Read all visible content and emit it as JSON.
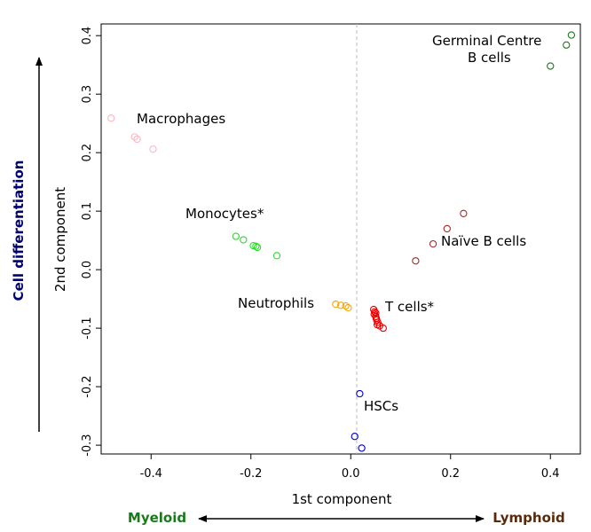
{
  "chart_data": {
    "type": "scatter",
    "xlabel": "1st component",
    "ylabel": "2nd component",
    "xlim": [
      -0.5,
      0.46
    ],
    "ylim": [
      -0.315,
      0.42
    ],
    "x_ticks": [
      -0.4,
      -0.2,
      0.0,
      0.2,
      0.4
    ],
    "x_tick_labels": [
      "-0.4",
      "-0.2",
      "0.0",
      "0.2",
      "0.4"
    ],
    "y_ticks": [
      -0.3,
      -0.2,
      -0.1,
      0.0,
      0.1,
      0.2,
      0.3,
      0.4
    ],
    "y_tick_labels": [
      "-0.3",
      "-0.2",
      "-0.1",
      "0.0",
      "0.1",
      "0.2",
      "0.3",
      "0.4"
    ],
    "vertical_reference_line_x": 0.012,
    "series": [
      {
        "name": "Macrophages",
        "color": "#ffb6c1",
        "points": [
          [
            -0.48,
            0.259
          ],
          [
            -0.433,
            0.227
          ],
          [
            -0.428,
            0.223
          ],
          [
            -0.396,
            0.206
          ]
        ]
      },
      {
        "name": "Monocytes*",
        "color": "#2adb2a",
        "points": [
          [
            -0.23,
            0.057
          ],
          [
            -0.215,
            0.051
          ],
          [
            -0.195,
            0.041
          ],
          [
            -0.19,
            0.04
          ],
          [
            -0.187,
            0.038
          ],
          [
            -0.148,
            0.024
          ]
        ]
      },
      {
        "name": "Neutrophils",
        "color": "#f5a800",
        "points": [
          [
            -0.03,
            -0.059
          ],
          [
            -0.02,
            -0.061
          ],
          [
            -0.01,
            -0.062
          ],
          [
            -0.005,
            -0.065
          ]
        ]
      },
      {
        "name": "HSCs",
        "color": "#0000cc",
        "points": [
          [
            0.018,
            -0.212
          ],
          [
            0.008,
            -0.285
          ],
          [
            0.022,
            -0.305
          ]
        ]
      },
      {
        "name": "T cells*",
        "color": "#ee0000",
        "points": [
          [
            0.046,
            -0.068
          ],
          [
            0.048,
            -0.072
          ],
          [
            0.047,
            -0.076
          ],
          [
            0.05,
            -0.08
          ],
          [
            0.051,
            -0.083
          ],
          [
            0.052,
            -0.086
          ],
          [
            0.054,
            -0.09
          ],
          [
            0.053,
            -0.094
          ],
          [
            0.058,
            -0.096
          ],
          [
            0.065,
            -0.1
          ],
          [
            0.05,
            -0.074
          ]
        ]
      },
      {
        "name": "Naïve B cells",
        "color": "#a52a2a",
        "points": [
          [
            0.13,
            0.015
          ],
          [
            0.165,
            0.044
          ],
          [
            0.193,
            0.07
          ],
          [
            0.226,
            0.096
          ]
        ]
      },
      {
        "name": "Germinal Centre B cells",
        "color": "#1a7a1a",
        "points": [
          [
            0.4,
            0.348
          ],
          [
            0.432,
            0.384
          ],
          [
            0.442,
            0.401
          ]
        ]
      }
    ],
    "annotations": {
      "macrophages": "Macrophages",
      "monocytes": "Monocytes*",
      "neutrophils": "Neutrophils",
      "t_cells": "T cells*",
      "naive_b": "Naïve B cells",
      "germinal_line1": "Germinal Centre",
      "germinal_line2": "B cells",
      "hscs": "HSCs"
    },
    "side_labels": {
      "vertical": "Cell differentiation",
      "vertical_color": "#00006e",
      "left": "Myeloid",
      "left_color": "#1a7a1a",
      "right": "Lymphoid",
      "right_color": "#5a2a0a"
    }
  }
}
